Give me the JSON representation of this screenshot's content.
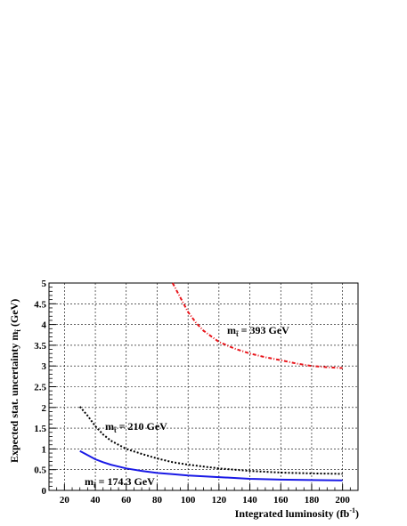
{
  "chart_data": {
    "type": "line",
    "title": "",
    "xlabel": "Integrated luminosity (fb",
    "xlabel_sup": "-1",
    "xlabel_end": ")",
    "ylabel": "Expected stat. uncertainty m",
    "ylabel_sub": "t̃",
    "ylabel_end": " (GeV)",
    "xlim": [
      10,
      210
    ],
    "ylim": [
      0,
      5
    ],
    "xticks": [
      20,
      40,
      60,
      80,
      100,
      120,
      140,
      160,
      180,
      200
    ],
    "yticks": [
      0,
      0.5,
      1,
      1.5,
      2,
      2.5,
      3,
      3.5,
      4,
      4.5,
      5
    ],
    "grid": true,
    "series": [
      {
        "name": "393 GeV",
        "label_prefix": "m",
        "label_sub": "t̃",
        "label_value": " = 393 GeV",
        "color": "#e8141a",
        "dash": "dashdot",
        "x": [
          90,
          95,
          100,
          105,
          110,
          120,
          130,
          140,
          150,
          160,
          170,
          180,
          190,
          200
        ],
        "y": [
          5.0,
          4.65,
          4.3,
          4.05,
          3.85,
          3.58,
          3.42,
          3.3,
          3.21,
          3.14,
          3.06,
          3.0,
          2.97,
          2.95
        ]
      },
      {
        "name": "210 GeV",
        "label_prefix": "m",
        "label_sub": "t̃",
        "label_value": " = 210 GeV",
        "color": "#000000",
        "dash": "dotted",
        "x": [
          30,
          35,
          40,
          45,
          50,
          60,
          70,
          80,
          90,
          100,
          120,
          140,
          160,
          180,
          200
        ],
        "y": [
          2.02,
          1.8,
          1.55,
          1.35,
          1.2,
          1.0,
          0.88,
          0.77,
          0.68,
          0.62,
          0.53,
          0.47,
          0.43,
          0.41,
          0.4
        ]
      },
      {
        "name": "174.3 GeV",
        "label_prefix": "m",
        "label_sub": "t̃",
        "label_value": " = 174.3 GeV",
        "color": "#1a1ae6",
        "dash": "solid",
        "x": [
          30,
          35,
          40,
          45,
          50,
          60,
          70,
          80,
          90,
          100,
          120,
          140,
          160,
          180,
          200
        ],
        "y": [
          0.95,
          0.85,
          0.75,
          0.68,
          0.62,
          0.53,
          0.47,
          0.42,
          0.39,
          0.36,
          0.32,
          0.28,
          0.26,
          0.25,
          0.24
        ]
      }
    ]
  }
}
